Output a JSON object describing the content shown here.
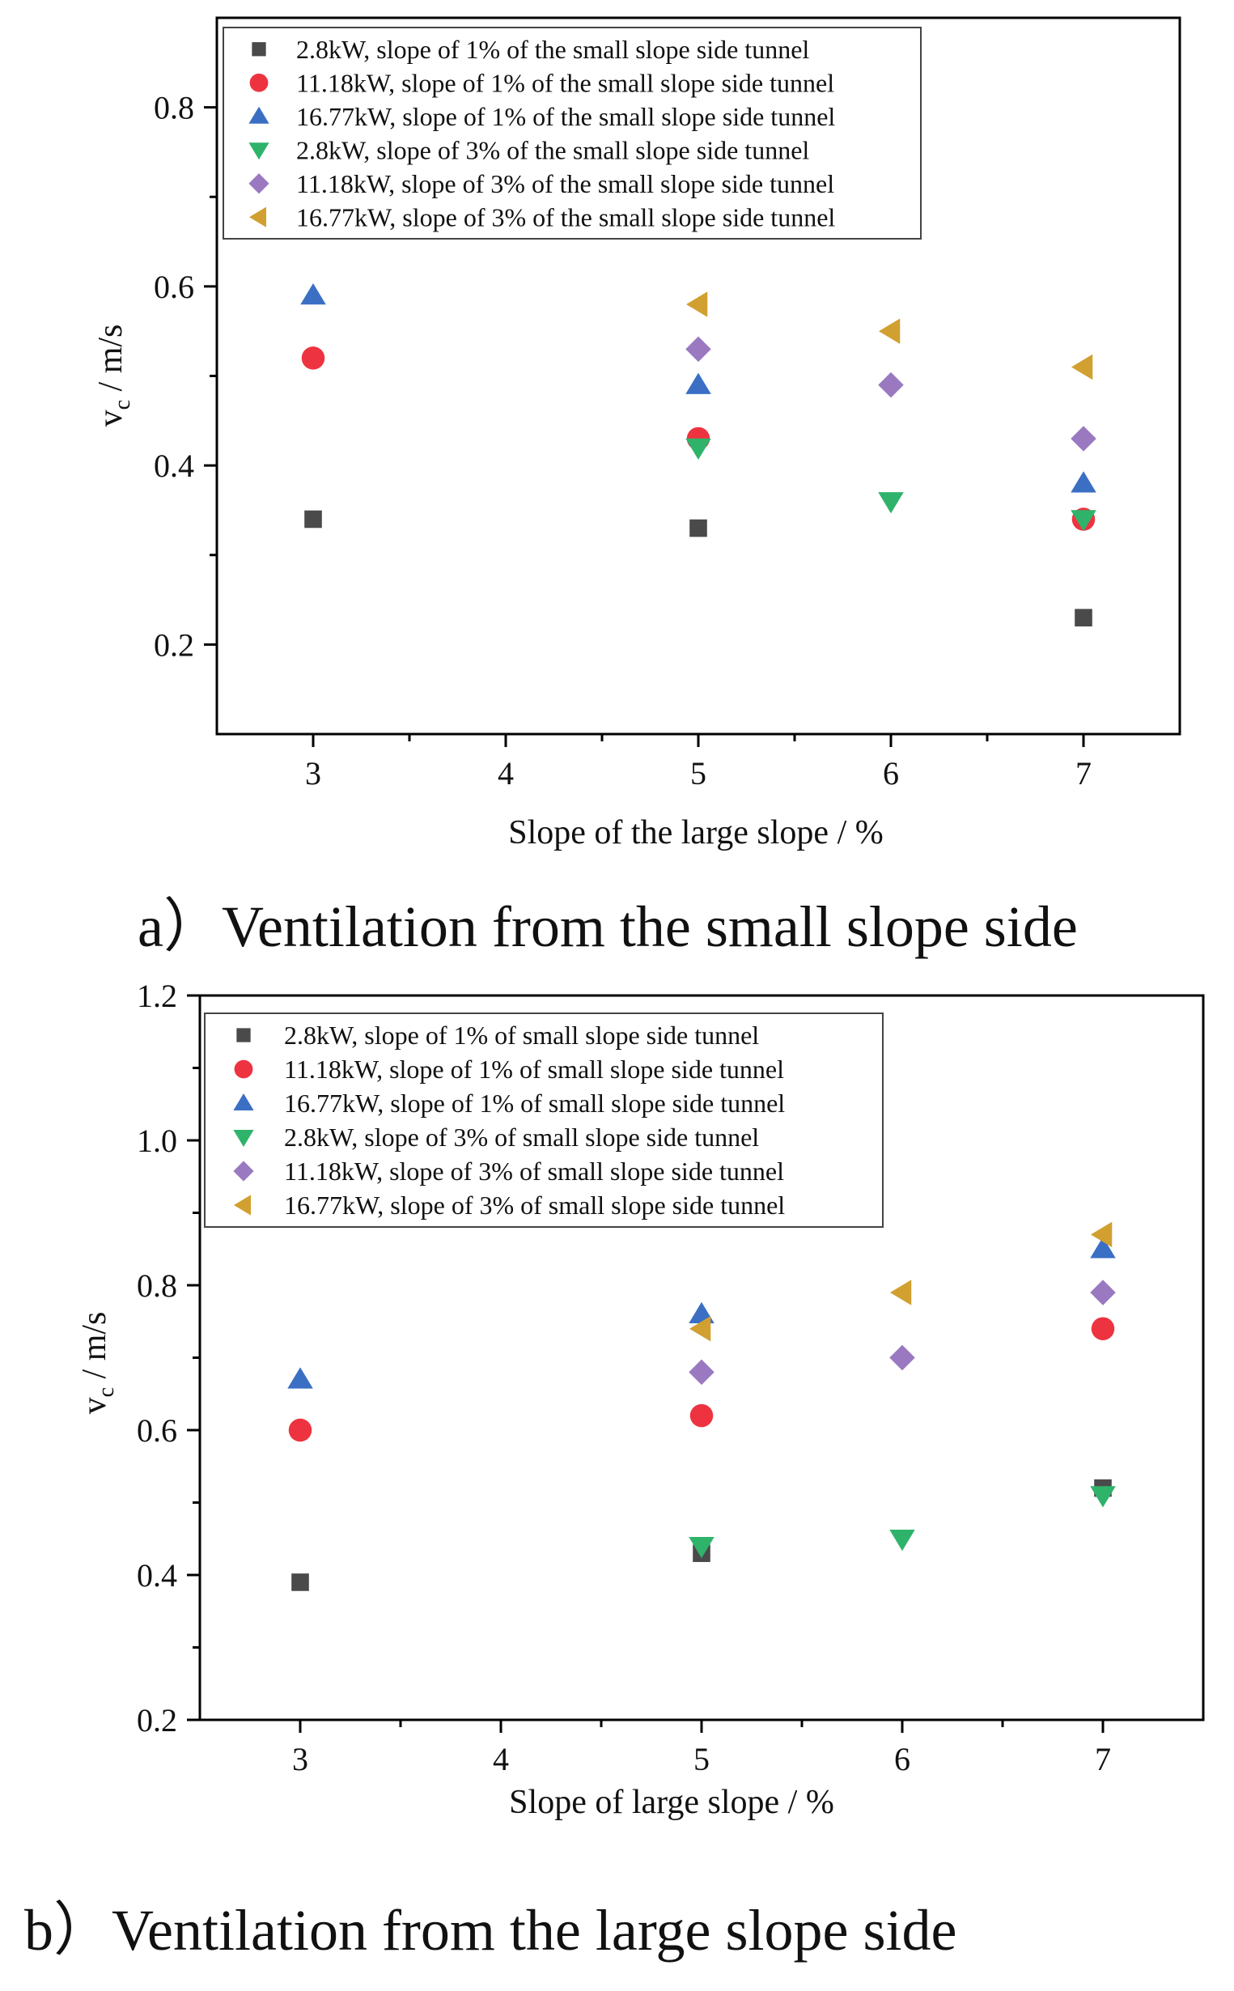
{
  "chart_data": [
    {
      "type": "scatter",
      "panel": "a",
      "caption": "a）Ventilation from the small slope side",
      "xlabel": "Slope of the large slope  / %",
      "ylabel_main": "v",
      "ylabel_sub": "c",
      "ylabel_rest": " / m/s",
      "xlim": [
        2.5,
        7.5
      ],
      "ylim": [
        0.1,
        0.9
      ],
      "xticks": [
        3,
        4,
        5,
        6,
        7
      ],
      "xtick_labels": [
        "3",
        "4",
        "5",
        "6",
        "7"
      ],
      "yticks": [
        0.2,
        0.4,
        0.6,
        0.8
      ],
      "ytick_labels": [
        "0.2",
        "0.4",
        "0.6",
        "0.8"
      ],
      "legend_position": "top-left",
      "series": [
        {
          "name": "2.8kW, slope of 1% of the small slope side tunnel",
          "marker": "square",
          "color": "#4a4a4a",
          "points": [
            [
              3,
              0.34
            ],
            [
              5,
              0.33
            ],
            [
              7,
              0.23
            ]
          ]
        },
        {
          "name": "11.18kW, slope of 1% of the small slope side tunnel",
          "marker": "circle",
          "color": "#ee3340",
          "points": [
            [
              3,
              0.52
            ],
            [
              5,
              0.43
            ],
            [
              7,
              0.34
            ]
          ]
        },
        {
          "name": "16.77kW, slope of 1% of the small slope side tunnel",
          "marker": "triangle-up",
          "color": "#3a6fc4",
          "points": [
            [
              3,
              0.59
            ],
            [
              5,
              0.49
            ],
            [
              7,
              0.38
            ]
          ]
        },
        {
          "name": "2.8kW, slope of 3% of the small slope side tunnel",
          "marker": "triangle-down",
          "color": "#2fb36b",
          "points": [
            [
              5,
              0.42
            ],
            [
              6,
              0.36
            ],
            [
              7,
              0.34
            ]
          ]
        },
        {
          "name": "11.18kW, slope of 3% of the small slope side tunnel",
          "marker": "diamond",
          "color": "#9a79c1",
          "points": [
            [
              5,
              0.53
            ],
            [
              6,
              0.49
            ],
            [
              7,
              0.43
            ]
          ]
        },
        {
          "name": "16.77kW, slope of 3% of the small slope side tunnel",
          "marker": "triangle-left",
          "color": "#d1a030",
          "points": [
            [
              5,
              0.58
            ],
            [
              6,
              0.55
            ],
            [
              7,
              0.51
            ]
          ]
        }
      ]
    },
    {
      "type": "scatter",
      "panel": "b",
      "caption": "b）Ventilation from the large slope side",
      "xlabel": "Slope of large slope / %",
      "ylabel_main": "v",
      "ylabel_sub": "c",
      "ylabel_rest": " / m/s",
      "xlim": [
        2.5,
        7.5
      ],
      "ylim": [
        0.2,
        1.2
      ],
      "xticks": [
        3,
        4,
        5,
        6,
        7
      ],
      "xtick_labels": [
        "3",
        "4",
        "5",
        "6",
        "7"
      ],
      "yticks": [
        0.2,
        0.4,
        0.6,
        0.8,
        1.0,
        1.2
      ],
      "ytick_labels": [
        "0.2",
        "0.4",
        "0.6",
        "0.8",
        "1.0",
        "1.2"
      ],
      "legend_position": "top-left",
      "series": [
        {
          "name": "2.8kW, slope of 1% of small slope side tunnel",
          "marker": "square",
          "color": "#4a4a4a",
          "points": [
            [
              3,
              0.39
            ],
            [
              5,
              0.43
            ],
            [
              7,
              0.52
            ]
          ]
        },
        {
          "name": "11.18kW, slope of 1% of small slope side tunnel",
          "marker": "circle",
          "color": "#ee3340",
          "points": [
            [
              3,
              0.6
            ],
            [
              5,
              0.62
            ],
            [
              7,
              0.74
            ]
          ]
        },
        {
          "name": "16.77kW, slope of 1% of small slope side tunnel",
          "marker": "triangle-up",
          "color": "#3a6fc4",
          "points": [
            [
              3,
              0.67
            ],
            [
              5,
              0.76
            ],
            [
              7,
              0.85
            ]
          ]
        },
        {
          "name": "2.8kW, slope of 3% of small slope side tunnel",
          "marker": "triangle-down",
          "color": "#2fb36b",
          "points": [
            [
              5,
              0.44
            ],
            [
              6,
              0.45
            ],
            [
              7,
              0.51
            ]
          ]
        },
        {
          "name": "11.18kW, slope of 3% of small slope side tunnel",
          "marker": "diamond",
          "color": "#9a79c1",
          "points": [
            [
              5,
              0.68
            ],
            [
              6,
              0.7
            ],
            [
              7,
              0.79
            ]
          ]
        },
        {
          "name": "16.77kW, slope of 3% of small slope side tunnel",
          "marker": "triangle-left",
          "color": "#d1a030",
          "points": [
            [
              5,
              0.74
            ],
            [
              6,
              0.79
            ],
            [
              7,
              0.87
            ]
          ]
        }
      ]
    }
  ]
}
